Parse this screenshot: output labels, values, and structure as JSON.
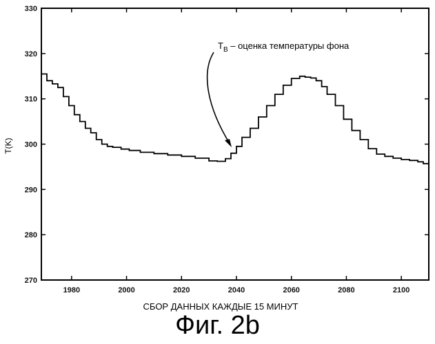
{
  "chart_data": {
    "type": "line",
    "title": "",
    "xlabel": "СБОР ДАННЫХ КАЖДЫЕ 15 МИНУТ",
    "ylabel": "T(K)",
    "xlim": [
      1969,
      2110
    ],
    "ylim": [
      270,
      330
    ],
    "x_ticks": [
      1980,
      2000,
      2020,
      2040,
      2060,
      2080,
      2100
    ],
    "y_ticks": [
      270,
      280,
      290,
      300,
      310,
      320,
      330
    ],
    "step": true,
    "grid": false,
    "series": [
      {
        "x": [
          1969,
          1971,
          1973,
          1975,
          1977,
          1979,
          1981,
          1983,
          1985,
          1987,
          1989,
          1991,
          1993,
          1995,
          1998,
          2001,
          2005,
          2010,
          2015,
          2020,
          2025,
          2030,
          2033,
          2036,
          2038,
          2040,
          2042,
          2045,
          2048,
          2051,
          2054,
          2057,
          2060,
          2063,
          2065,
          2067,
          2069,
          2071,
          2073,
          2076,
          2079,
          2082,
          2085,
          2088,
          2091,
          2094,
          2097,
          2100,
          2103,
          2106,
          2108,
          2110
        ],
        "values": [
          315.5,
          314,
          313.3,
          312.5,
          310.5,
          308.5,
          306.5,
          305,
          303.5,
          302.5,
          301,
          300,
          299.5,
          299.3,
          298.9,
          298.6,
          298.2,
          297.9,
          297.6,
          297.3,
          296.9,
          296.3,
          296.2,
          296.8,
          298,
          299.5,
          301.5,
          303.5,
          306,
          308.5,
          311,
          313,
          314.5,
          315,
          314.8,
          314.6,
          314,
          312.7,
          311,
          308.5,
          305.5,
          303,
          301,
          299,
          297.8,
          297.3,
          296.9,
          296.6,
          296.4,
          296.1,
          295.7,
          295.2
        ]
      }
    ],
    "annotations": [
      {
        "text_main": "T",
        "text_sub": "B",
        "text_rest": " – оценка температуры фона",
        "x": 2039,
        "y": 299
      }
    ]
  },
  "figure": {
    "caption": "Фиг. 2b"
  }
}
